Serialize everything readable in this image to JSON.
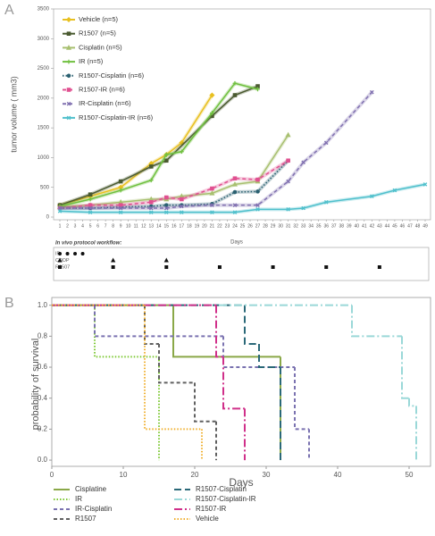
{
  "chart_data": [
    {
      "type": "line",
      "panel": "A",
      "ylabel": "tumor volume ( mm3)",
      "xlabel": "Days",
      "xlim": [
        1,
        49
      ],
      "xticks": [
        1,
        2,
        3,
        4,
        5,
        6,
        7,
        8,
        9,
        10,
        11,
        12,
        13,
        14,
        15,
        16,
        17,
        18,
        19,
        20,
        21,
        22,
        23,
        24,
        25,
        26,
        27,
        28,
        29,
        30,
        31,
        32,
        33,
        34,
        35,
        36,
        37,
        38,
        39,
        40,
        41,
        42,
        43,
        44,
        45,
        46,
        47,
        48,
        49
      ],
      "ylim": [
        0,
        3500
      ],
      "yticks": [
        0,
        500,
        1000,
        1500,
        2000,
        2500,
        3000,
        3500
      ],
      "series": [
        {
          "name": "Vehicle (n=5)",
          "color": "#e8c020",
          "marker": "diamond",
          "dash": "solid",
          "x": [
            1,
            5,
            9,
            13,
            15,
            17,
            21
          ],
          "values": [
            200,
            350,
            500,
            900,
            1050,
            1250,
            2050
          ]
        },
        {
          "name": "R1507 (n=5)",
          "color": "#4a5a30",
          "marker": "square",
          "dash": "solid",
          "x": [
            1,
            5,
            9,
            13,
            15,
            21,
            24,
            27
          ],
          "values": [
            200,
            380,
            600,
            850,
            950,
            1700,
            2050,
            2200
          ]
        },
        {
          "name": "Cisplatin (n=5)",
          "color": "#a8c070",
          "marker": "triangle",
          "dash": "solid",
          "x": [
            1,
            5,
            9,
            13,
            15,
            17,
            21,
            24,
            27,
            31
          ],
          "values": [
            170,
            200,
            250,
            300,
            300,
            350,
            400,
            550,
            600,
            1380
          ]
        },
        {
          "name": "IR (n=5)",
          "color": "#70c040",
          "marker": "cross",
          "dash": "solid",
          "x": [
            1,
            5,
            9,
            13,
            15,
            17,
            21,
            24,
            27
          ],
          "values": [
            180,
            300,
            450,
            620,
            1050,
            1100,
            1750,
            2250,
            2150
          ]
        },
        {
          "name": "R1507-Cisplatin (n=6)",
          "color": "#2a6070",
          "marker": "circle",
          "dash": "dotted",
          "x": [
            1,
            5,
            9,
            13,
            15,
            17,
            21,
            24,
            27,
            31
          ],
          "values": [
            150,
            150,
            170,
            180,
            200,
            200,
            220,
            420,
            430,
            950
          ]
        },
        {
          "name": "R1507-IR (n=6)",
          "color": "#e05090",
          "marker": "square",
          "dash": "dashed",
          "x": [
            1,
            5,
            9,
            13,
            15,
            17,
            21,
            24,
            27,
            31
          ],
          "values": [
            150,
            200,
            200,
            250,
            330,
            300,
            480,
            650,
            630,
            950
          ]
        },
        {
          "name": "IR-Cisplatin (n=6)",
          "color": "#8070b0",
          "marker": "x",
          "dash": "dashed",
          "x": [
            1,
            5,
            9,
            13,
            15,
            17,
            21,
            24,
            27,
            31,
            33,
            36,
            42
          ],
          "values": [
            150,
            150,
            150,
            150,
            150,
            180,
            200,
            200,
            200,
            600,
            920,
            1250,
            2100
          ]
        },
        {
          "name": "R1507-Cisplatin-IR (n=6)",
          "color": "#50c0cc",
          "marker": "x",
          "dash": "solid",
          "x": [
            1,
            5,
            9,
            13,
            15,
            17,
            21,
            24,
            27,
            31,
            33,
            36,
            42,
            45,
            49
          ],
          "values": [
            100,
            80,
            80,
            80,
            80,
            80,
            80,
            80,
            130,
            130,
            150,
            250,
            350,
            450,
            550
          ]
        }
      ],
      "workflow": {
        "title": "In vivo protocol workflow:",
        "rows": [
          {
            "label": "IR",
            "marker": "circle",
            "days": [
              1,
              2,
              3,
              4
            ]
          },
          {
            "label": "CDDP",
            "marker": "triangle",
            "days": [
              1,
              8,
              15
            ]
          },
          {
            "label": "R1507",
            "marker": "square",
            "days": [
              1,
              8,
              15,
              22,
              29,
              36,
              43
            ]
          }
        ]
      }
    },
    {
      "type": "step",
      "panel": "B",
      "ylabel": "probability of survival",
      "xlabel": "Days",
      "xlim": [
        0,
        53
      ],
      "xticks": [
        0,
        10,
        20,
        30,
        40,
        50
      ],
      "ylim": [
        -0.04,
        1.05
      ],
      "yticks": [
        {
          "value": 0,
          "label": "0.0"
        },
        {
          "value": 0.2,
          "label": "0.2"
        },
        {
          "value": 0.4,
          "label": "0.4"
        },
        {
          "value": 0.6,
          "label": "0.6"
        },
        {
          "value": 0.8,
          "label": "0.8"
        },
        {
          "value": 1,
          "label": "1.0"
        }
      ],
      "series": [
        {
          "name": "Cisplatine",
          "color": "#8aa848",
          "dash": "solid",
          "x": [
            0,
            17,
            32
          ],
          "values": [
            1,
            0.667,
            0
          ]
        },
        {
          "name": "IR",
          "color": "#7cc832",
          "dash": "dotted",
          "x": [
            0,
            6,
            15
          ],
          "values": [
            1,
            0.667,
            0
          ]
        },
        {
          "name": "IR-Cisplatin",
          "color": "#7a72b0",
          "dash": "dashed",
          "x": [
            0,
            6,
            24,
            34,
            36
          ],
          "values": [
            1,
            0.8,
            0.6,
            0.2,
            0
          ]
        },
        {
          "name": "R1507",
          "color": "#606060",
          "dash": "dashed",
          "x": [
            0,
            13,
            15,
            20,
            23
          ],
          "values": [
            1,
            0.75,
            0.5,
            0.25,
            0
          ]
        },
        {
          "name": "R1507-Cisplatin",
          "color": "#2a6878",
          "dash": "longdash",
          "x": [
            0,
            27,
            29,
            32
          ],
          "values": [
            1,
            0.75,
            0.6,
            0
          ]
        },
        {
          "name": "R1507-Cisplatin-IR",
          "color": "#9ad8d8",
          "dash": "dashdot",
          "x": [
            0,
            42,
            49,
            50,
            51
          ],
          "values": [
            1,
            0.8,
            0.4,
            0.35,
            0
          ]
        },
        {
          "name": "R1507-IR",
          "color": "#d0308a",
          "dash": "dashdot",
          "x": [
            0,
            23,
            24,
            27
          ],
          "values": [
            1,
            0.667,
            0.333,
            0
          ]
        },
        {
          "name": "Vehicle",
          "color": "#f0b030",
          "dash": "dotted",
          "x": [
            0,
            13,
            21
          ],
          "values": [
            1,
            0.2,
            0
          ]
        }
      ]
    }
  ]
}
